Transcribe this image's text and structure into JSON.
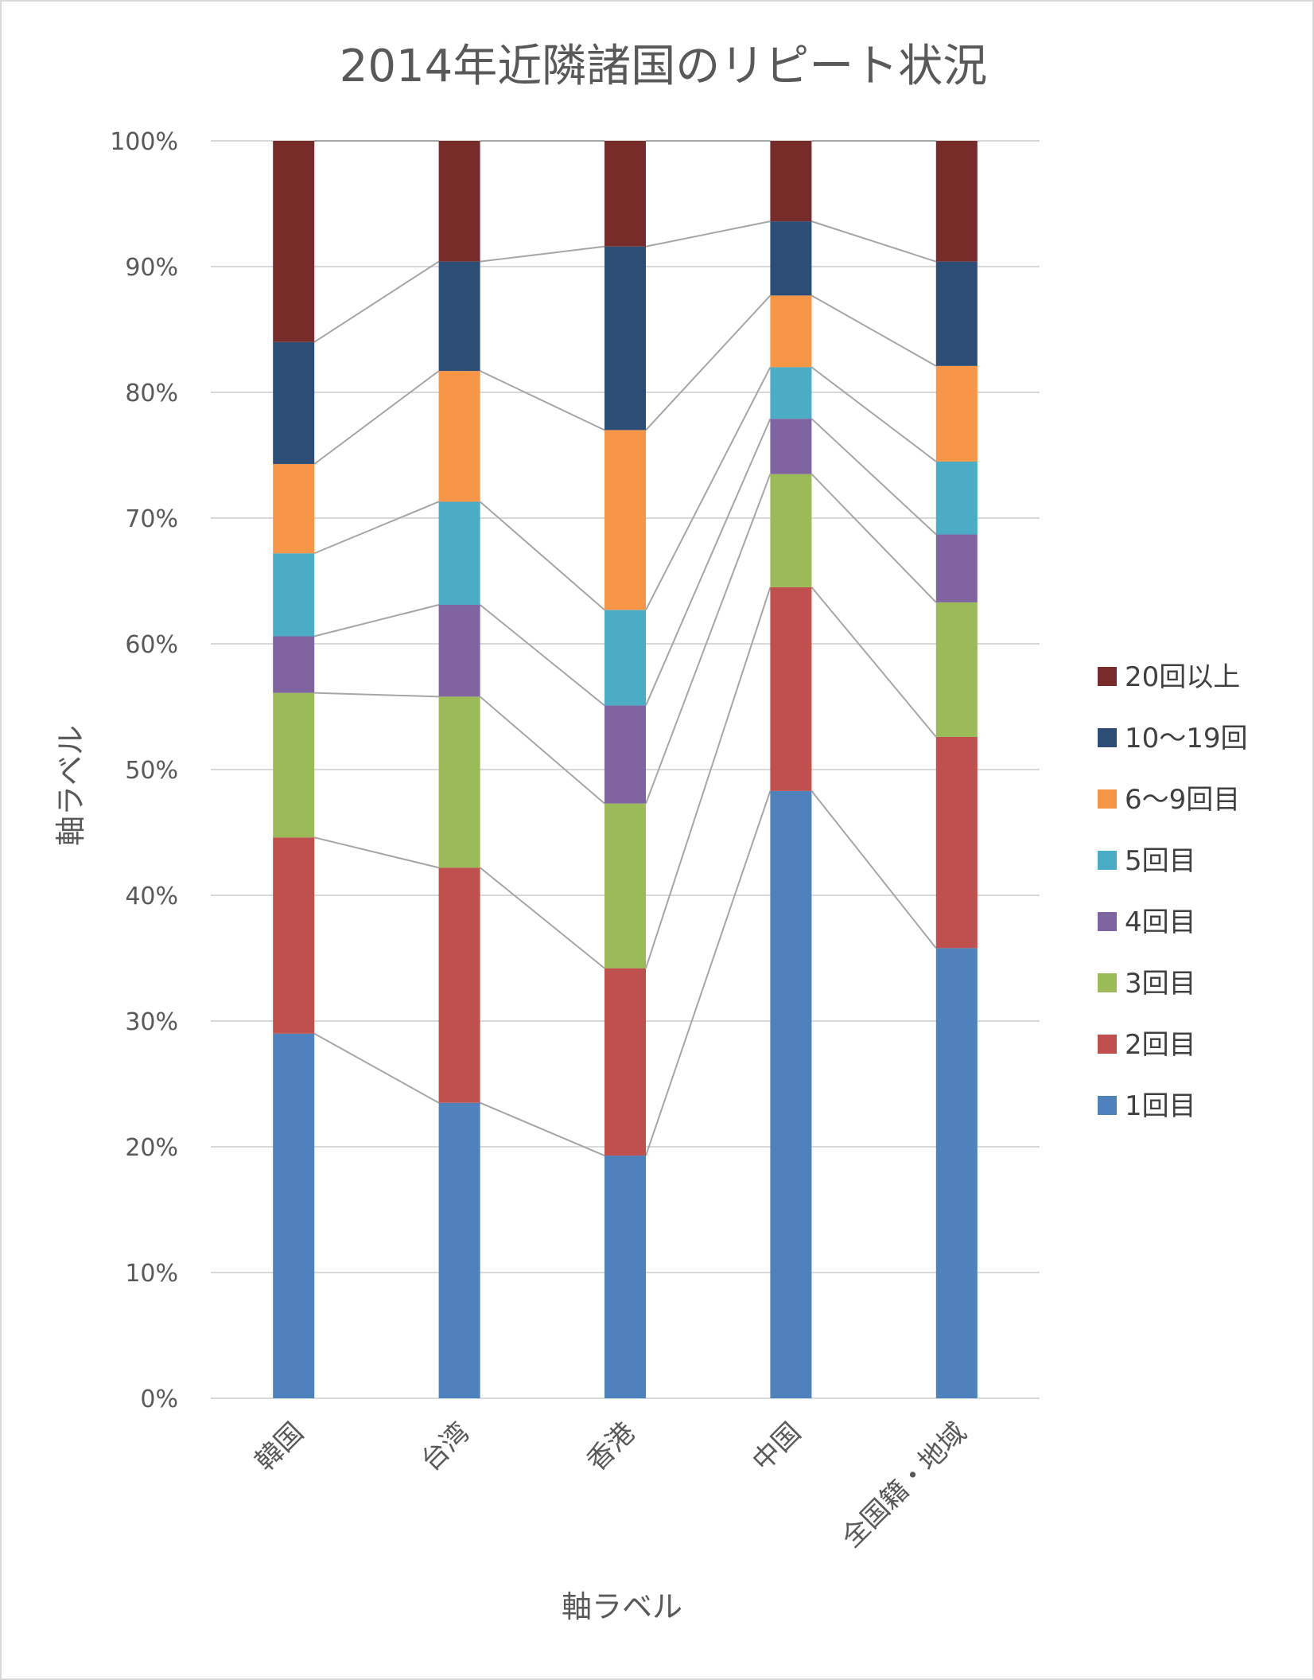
{
  "chart_data": {
    "type": "bar",
    "stacked": "percent",
    "title": "2014年近隣諸国のリピート状況",
    "xlabel": "軸ラベル",
    "ylabel": "軸ラベル",
    "ylim": [
      0,
      100
    ],
    "yticks": [
      "0%",
      "10%",
      "20%",
      "30%",
      "40%",
      "50%",
      "60%",
      "70%",
      "80%",
      "90%",
      "100%"
    ],
    "grid": true,
    "series_lines": true,
    "legend_position": "right",
    "categories": [
      "韓国",
      "台湾",
      "香港",
      "中国",
      "全国籍・地域"
    ],
    "series": [
      {
        "name": "1回目",
        "color": "#4F81BD",
        "values": [
          29.0,
          23.5,
          19.3,
          48.3,
          35.8
        ]
      },
      {
        "name": "2回目",
        "color": "#C0504D",
        "values": [
          15.6,
          18.7,
          14.9,
          16.2,
          16.8
        ]
      },
      {
        "name": "3回目",
        "color": "#9BBB59",
        "values": [
          11.5,
          13.6,
          13.1,
          9.0,
          10.7
        ]
      },
      {
        "name": "4回目",
        "color": "#8064A2",
        "values": [
          4.5,
          7.3,
          7.8,
          4.4,
          5.4
        ]
      },
      {
        "name": "5回目",
        "color": "#4BACC6",
        "values": [
          6.6,
          8.2,
          7.6,
          4.1,
          5.8
        ]
      },
      {
        "name": "6〜9回目",
        "color": "#F79646",
        "values": [
          7.1,
          10.4,
          14.3,
          5.7,
          7.6
        ]
      },
      {
        "name": "10〜19回",
        "color": "#2C4D75",
        "values": [
          9.7,
          8.7,
          14.6,
          5.9,
          8.3
        ]
      },
      {
        "name": "20回以上",
        "color": "#772C2A",
        "values": [
          16.0,
          9.6,
          8.4,
          6.4,
          9.6
        ]
      }
    ]
  }
}
